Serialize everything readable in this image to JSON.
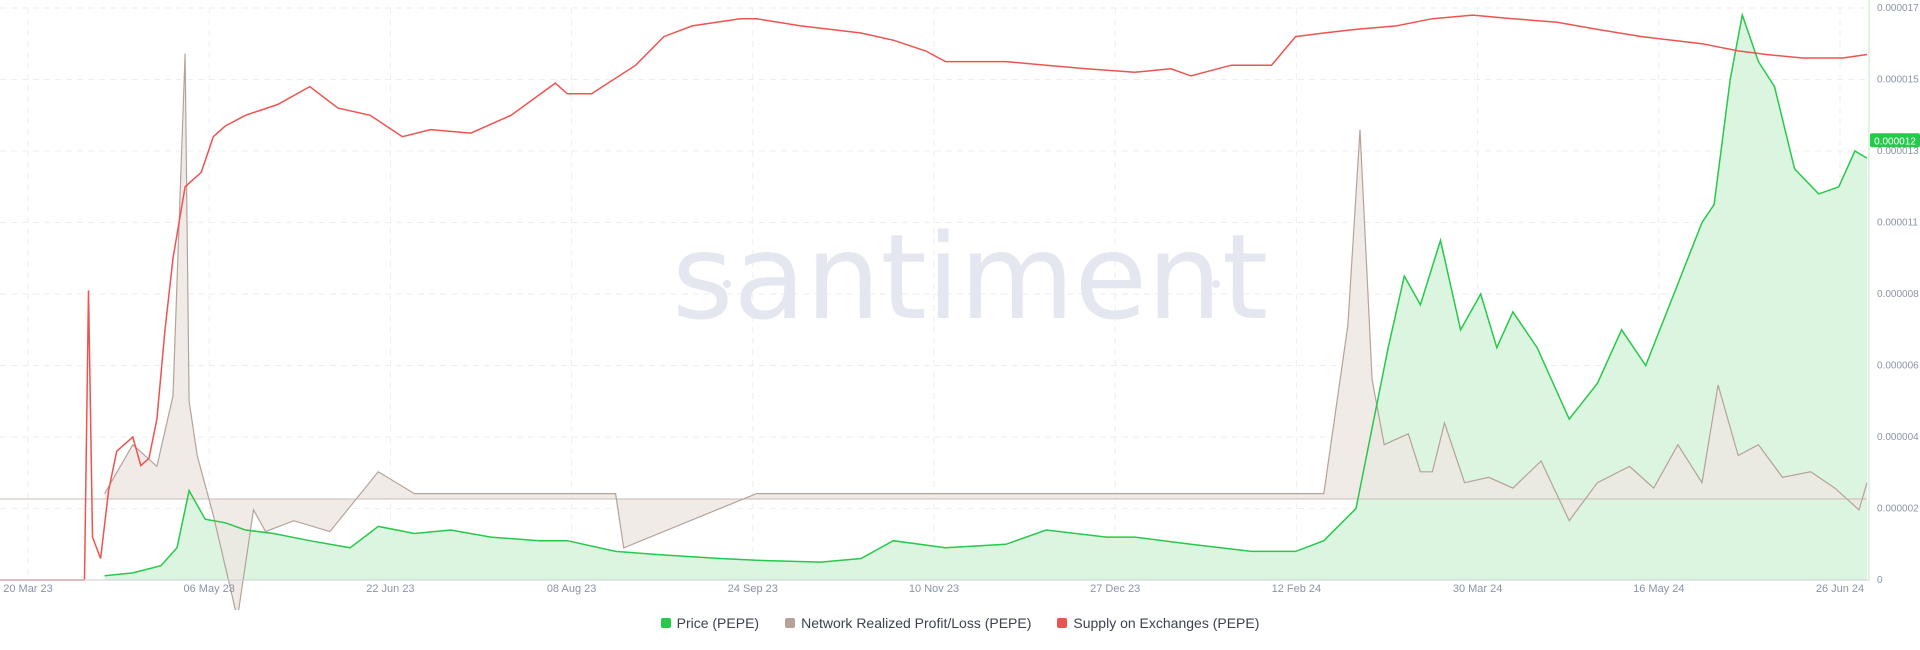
{
  "chart_data": {
    "type": "line",
    "watermark": "santiment",
    "x_ticks": [
      "20 Mar 23",
      "06 May 23",
      "22 Jun 23",
      "08 Aug 23",
      "24 Sep 23",
      "10 Nov 23",
      "27 Dec 23",
      "12 Feb 24",
      "30 Mar 24",
      "16 May 24",
      "26 Jun 24"
    ],
    "y_ticks": [
      "0",
      "0.000002",
      "0.000004",
      "0.000006",
      "0.000008",
      "0.000011",
      "0.000013",
      "0.000015",
      "0.000017"
    ],
    "ylim": [
      0,
      1.6e-05
    ],
    "current_price_label": "0.000012",
    "legend_position": "bottom-center",
    "grid": true,
    "series": [
      {
        "name": "Price (PEPE)",
        "color": "#26c94a",
        "fill": "#dcf5e0",
        "x": [
          "2023-04-15",
          "2023-04-22",
          "2023-04-29",
          "2023-05-03",
          "2023-05-06",
          "2023-05-10",
          "2023-05-15",
          "2023-05-20",
          "2023-05-27",
          "2023-06-05",
          "2023-06-15",
          "2023-06-22",
          "2023-07-01",
          "2023-07-10",
          "2023-07-20",
          "2023-08-01",
          "2023-08-08",
          "2023-08-20",
          "2023-09-01",
          "2023-09-15",
          "2023-09-24",
          "2023-10-10",
          "2023-10-20",
          "2023-10-28",
          "2023-11-10",
          "2023-11-25",
          "2023-12-05",
          "2023-12-20",
          "2023-12-27",
          "2024-01-10",
          "2024-01-25",
          "2024-02-05",
          "2024-02-12",
          "2024-02-20",
          "2024-02-28",
          "2024-03-03",
          "2024-03-07",
          "2024-03-12",
          "2024-03-17",
          "2024-03-22",
          "2024-03-26",
          "2024-03-30",
          "2024-04-05",
          "2024-04-13",
          "2024-04-20",
          "2024-04-26",
          "2024-05-02",
          "2024-05-09",
          "2024-05-16",
          "2024-05-19",
          "2024-05-23",
          "2024-05-26",
          "2024-05-30",
          "2024-06-03",
          "2024-06-08",
          "2024-06-14",
          "2024-06-19",
          "2024-06-23",
          "2024-06-26"
        ],
        "values": [
          1.2e-07,
          2e-07,
          4e-07,
          9e-07,
          2.5e-06,
          1.7e-06,
          1.6e-06,
          1.4e-06,
          1.3e-06,
          1.1e-06,
          9e-07,
          1.5e-06,
          1.3e-06,
          1.4e-06,
          1.2e-06,
          1.1e-06,
          1.1e-06,
          8e-07,
          7e-07,
          6e-07,
          5.5e-07,
          5e-07,
          6e-07,
          1.1e-06,
          9e-07,
          1e-06,
          1.4e-06,
          1.2e-06,
          1.2e-06,
          1e-06,
          8e-07,
          8e-07,
          1.1e-06,
          2e-06,
          6.5e-06,
          8.5e-06,
          7.7e-06,
          9.5e-06,
          7e-06,
          8e-06,
          6.5e-06,
          7.5e-06,
          6.5e-06,
          4.5e-06,
          5.5e-06,
          7e-06,
          6e-06,
          8e-06,
          1e-05,
          1.05e-05,
          1.4e-05,
          1.58e-05,
          1.45e-05,
          1.38e-05,
          1.15e-05,
          1.08e-05,
          1.1e-05,
          1.2e-05,
          1.18e-05
        ]
      },
      {
        "name": "Network Realized Profit/Loss (PEPE)",
        "color": "#b5a39a",
        "fill": "#ede6e2",
        "x": [
          "2023-04-15",
          "2023-04-22",
          "2023-04-28",
          "2023-05-02",
          "2023-05-05",
          "2023-05-06",
          "2023-05-08",
          "2023-05-12",
          "2023-05-18",
          "2023-05-22",
          "2023-05-25",
          "2023-06-01",
          "2023-06-10",
          "2023-06-22",
          "2023-07-01",
          "2023-08-20",
          "2023-08-22",
          "2023-09-24",
          "2023-11-10",
          "2023-12-27",
          "2024-01-20",
          "2024-02-12",
          "2024-02-18",
          "2024-02-21",
          "2024-02-24",
          "2024-02-27",
          "2024-03-01",
          "2024-03-04",
          "2024-03-07",
          "2024-03-10",
          "2024-03-13",
          "2024-03-18",
          "2024-03-24",
          "2024-03-30",
          "2024-04-06",
          "2024-04-13",
          "2024-04-20",
          "2024-04-28",
          "2024-05-04",
          "2024-05-10",
          "2024-05-16",
          "2024-05-20",
          "2024-05-25",
          "2024-05-30",
          "2024-06-05",
          "2024-06-12",
          "2024-06-18",
          "2024-06-24",
          "2024-06-26"
        ],
        "values": [
          1e-07,
          1e-06,
          6e-07,
          1.9e-06,
          8.2e-06,
          1.8e-06,
          8e-07,
          -3e-07,
          -2.2e-06,
          -2e-07,
          -6e-07,
          -4e-07,
          -6e-07,
          5e-07,
          1e-07,
          1e-07,
          -9e-07,
          1e-07,
          1e-07,
          1e-07,
          1e-07,
          1e-07,
          3.2e-06,
          6.8e-06,
          2.2e-06,
          1e-06,
          1.1e-06,
          1.2e-06,
          5e-07,
          5e-07,
          1.4e-06,
          3e-07,
          4e-07,
          2e-07,
          7e-07,
          -4e-07,
          3e-07,
          6e-07,
          2e-07,
          1e-06,
          3e-07,
          2.1e-06,
          8e-07,
          1e-06,
          4e-07,
          5e-07,
          2e-07,
          -2e-07,
          3e-07
        ]
      },
      {
        "name": "Supply on Exchanges (PEPE)",
        "color": "#ef5350",
        "x": [
          "2023-04-10",
          "2023-04-11",
          "2023-04-12",
          "2023-04-14",
          "2023-04-16",
          "2023-04-18",
          "2023-04-20",
          "2023-04-22",
          "2023-04-24",
          "2023-04-26",
          "2023-04-28",
          "2023-04-30",
          "2023-05-02",
          "2023-05-05",
          "2023-05-07",
          "2023-05-09",
          "2023-05-12",
          "2023-05-15",
          "2023-05-20",
          "2023-05-28",
          "2023-06-05",
          "2023-06-12",
          "2023-06-20",
          "2023-06-28",
          "2023-07-05",
          "2023-07-15",
          "2023-07-25",
          "2023-08-05",
          "2023-08-08",
          "2023-08-14",
          "2023-08-25",
          "2023-09-01",
          "2023-09-08",
          "2023-09-20",
          "2023-09-24",
          "2023-10-05",
          "2023-10-20",
          "2023-10-28",
          "2023-11-05",
          "2023-11-10",
          "2023-11-25",
          "2023-12-05",
          "2023-12-15",
          "2023-12-27",
          "2024-01-05",
          "2024-01-10",
          "2024-01-20",
          "2024-01-30",
          "2024-02-05",
          "2024-02-12",
          "2024-02-20",
          "2024-03-01",
          "2024-03-10",
          "2024-03-20",
          "2024-03-30",
          "2024-04-10",
          "2024-04-20",
          "2024-05-01",
          "2024-05-16",
          "2024-05-25",
          "2024-06-01",
          "2024-06-10",
          "2024-06-20",
          "2024-06-26"
        ],
        "values": [
          0.0,
          8.1e-06,
          1.2e-06,
          6e-07,
          2.5e-06,
          3.6e-06,
          3.8e-06,
          4e-06,
          3.2e-06,
          3.4e-06,
          4.5e-06,
          7e-06,
          9e-06,
          1.1e-05,
          1.12e-05,
          1.14e-05,
          1.24e-05,
          1.27e-05,
          1.3e-05,
          1.33e-05,
          1.38e-05,
          1.32e-05,
          1.3e-05,
          1.24e-05,
          1.26e-05,
          1.25e-05,
          1.3e-05,
          1.39e-05,
          1.36e-05,
          1.36e-05,
          1.44e-05,
          1.52e-05,
          1.55e-05,
          1.57e-05,
          1.57e-05,
          1.55e-05,
          1.53e-05,
          1.51e-05,
          1.48e-05,
          1.45e-05,
          1.45e-05,
          1.44e-05,
          1.43e-05,
          1.42e-05,
          1.43e-05,
          1.41e-05,
          1.44e-05,
          1.44e-05,
          1.52e-05,
          1.53e-05,
          1.54e-05,
          1.55e-05,
          1.57e-05,
          1.58e-05,
          1.57e-05,
          1.56e-05,
          1.54e-05,
          1.52e-05,
          1.5e-05,
          1.48e-05,
          1.47e-05,
          1.46e-05,
          1.46e-05,
          1.47e-05
        ]
      }
    ]
  }
}
